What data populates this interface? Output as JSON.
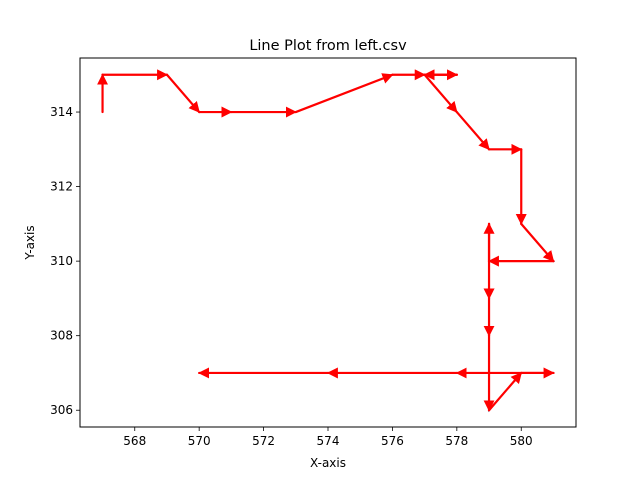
{
  "chart_data": {
    "type": "line",
    "title": "Line Plot from left.csv",
    "xlabel": "X-axis",
    "ylabel": "Y-axis",
    "xlim": [
      566.3,
      581.7
    ],
    "ylim": [
      305.55,
      315.45
    ],
    "x_ticks": [
      568,
      570,
      572,
      574,
      576,
      578,
      580
    ],
    "y_ticks": [
      306,
      308,
      310,
      312,
      314
    ],
    "grid": false,
    "legend": "none",
    "line_color": "#1f77b4",
    "arrow_color": "#ff0000",
    "series": [
      {
        "x": [
          567,
          567,
          569,
          570,
          571,
          573,
          576,
          577,
          578,
          577,
          578,
          579,
          580,
          580,
          581,
          579,
          579,
          579,
          579,
          579,
          580,
          581,
          578,
          574,
          570
        ],
        "y": [
          314,
          315,
          315,
          314,
          314,
          314,
          315,
          315,
          315,
          315,
          314,
          313,
          313,
          311,
          310,
          310,
          311,
          309,
          308,
          306,
          307,
          307,
          307,
          307,
          307
        ]
      }
    ]
  }
}
